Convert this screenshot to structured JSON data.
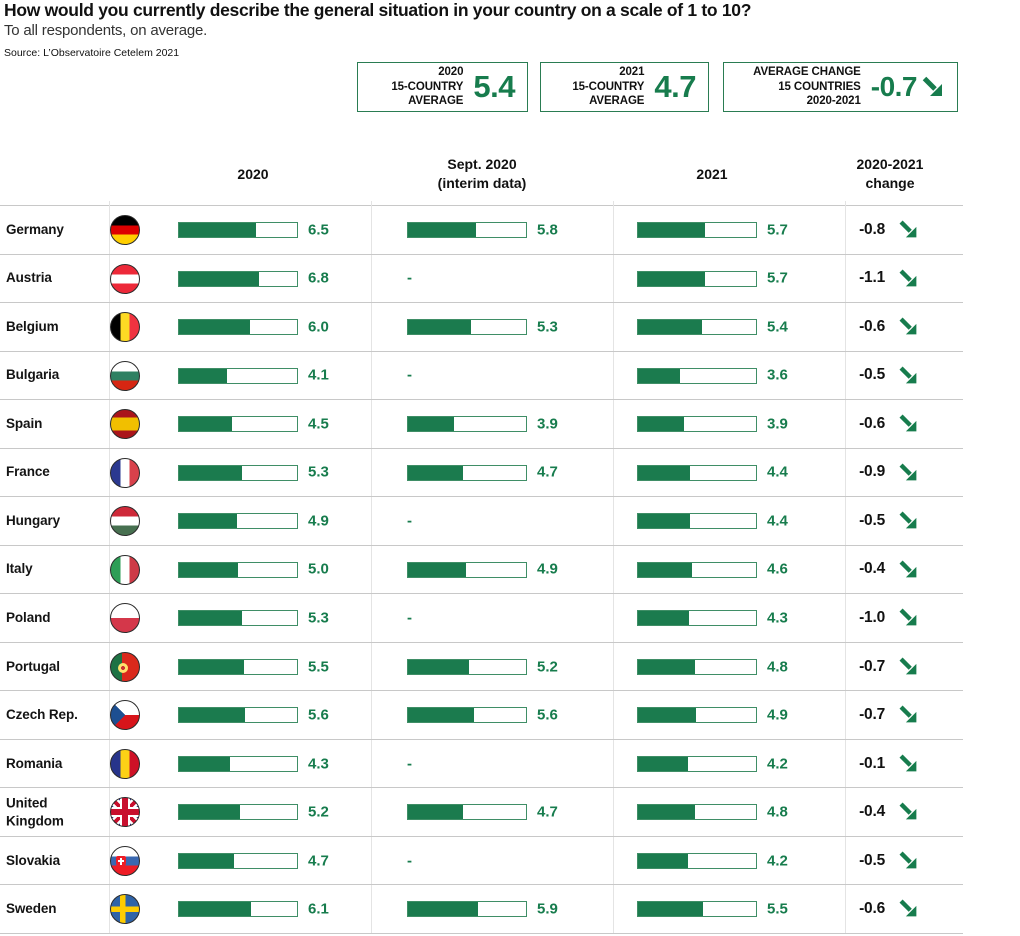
{
  "title": "How would you currently describe the general situation in your country on a scale of 1 to 10?",
  "subtitle": "To all respondents, on average.",
  "source": "Source: L’Observatoire Cetelem 2021",
  "colors": {
    "green": "#177c4d",
    "bar_fill": "#1b7b4e",
    "bar_border": "#3f8e66",
    "row_line": "#c8c8c8",
    "column_line": "#e4e4e4",
    "change_text": "#121212"
  },
  "summary_boxes": [
    {
      "label_lines": [
        "2020",
        "15-COUNTRY",
        "AVERAGE"
      ],
      "value": "5.4",
      "arrow": false
    },
    {
      "label_lines": [
        "2021",
        "15-COUNTRY",
        "AVERAGE"
      ],
      "value": "4.7",
      "arrow": false
    },
    {
      "label_lines": [
        "AVERAGE CHANGE",
        "15 COUNTRIES",
        "2020-2021"
      ],
      "value": "-0.7",
      "arrow": true
    }
  ],
  "columns": [
    {
      "lines": [
        "2020"
      ]
    },
    {
      "lines": [
        "Sept. 2020",
        "(interim data)"
      ]
    },
    {
      "lines": [
        "2021"
      ]
    },
    {
      "lines": [
        "2020-2021",
        "change"
      ]
    }
  ],
  "rows": [
    {
      "country": "Germany",
      "flag": "germany",
      "v2020": "6.5",
      "sept2020": "5.8",
      "v2021": "5.7",
      "change": "-0.8"
    },
    {
      "country": "Austria",
      "flag": "austria",
      "v2020": "6.8",
      "sept2020": "-",
      "v2021": "5.7",
      "change": "-1.1"
    },
    {
      "country": "Belgium",
      "flag": "belgium",
      "v2020": "6.0",
      "sept2020": "5.3",
      "v2021": "5.4",
      "change": "-0.6"
    },
    {
      "country": "Bulgaria",
      "flag": "bulgaria",
      "v2020": "4.1",
      "sept2020": "-",
      "v2021": "3.6",
      "change": "-0.5"
    },
    {
      "country": "Spain",
      "flag": "spain",
      "v2020": "4.5",
      "sept2020": "3.9",
      "v2021": "3.9",
      "change": "-0.6"
    },
    {
      "country": "France",
      "flag": "france",
      "v2020": "5.3",
      "sept2020": "4.7",
      "v2021": "4.4",
      "change": "-0.9"
    },
    {
      "country": "Hungary",
      "flag": "hungary",
      "v2020": "4.9",
      "sept2020": "-",
      "v2021": "4.4",
      "change": "-0.5"
    },
    {
      "country": "Italy",
      "flag": "italy",
      "v2020": "5.0",
      "sept2020": "4.9",
      "v2021": "4.6",
      "change": "-0.4"
    },
    {
      "country": "Poland",
      "flag": "poland",
      "v2020": "5.3",
      "sept2020": "-",
      "v2021": "4.3",
      "change": "-1.0"
    },
    {
      "country": "Portugal",
      "flag": "portugal",
      "v2020": "5.5",
      "sept2020": "5.2",
      "v2021": "4.8",
      "change": "-0.7"
    },
    {
      "country": "Czech Rep.",
      "flag": "czech",
      "v2020": "5.6",
      "sept2020": "5.6",
      "v2021": "4.9",
      "change": "-0.7"
    },
    {
      "country": "Romania",
      "flag": "romania",
      "v2020": "4.3",
      "sept2020": "-",
      "v2021": "4.2",
      "change": "-0.1"
    },
    {
      "country": "United Kingdom",
      "flag": "uk",
      "v2020": "5.2",
      "sept2020": "4.7",
      "v2021": "4.8",
      "change": "-0.4"
    },
    {
      "country": "Slovakia",
      "flag": "slovakia",
      "v2020": "4.7",
      "sept2020": "-",
      "v2021": "4.2",
      "change": "-0.5"
    },
    {
      "country": "Sweden",
      "flag": "sweden",
      "v2020": "6.1",
      "sept2020": "5.9",
      "v2021": "5.5",
      "change": "-0.6"
    }
  ],
  "chart_data": {
    "type": "bar",
    "title": "How would you currently describe the general situation in your country on a scale of 1 to 10?",
    "subtitle": "To all respondents, on average.",
    "source": "Source: L’Observatoire Cetelem 2021",
    "scale": [
      0,
      10
    ],
    "legend_position": "column-headers",
    "grid": false,
    "categories": [
      "Germany",
      "Austria",
      "Belgium",
      "Bulgaria",
      "Spain",
      "France",
      "Hungary",
      "Italy",
      "Poland",
      "Portugal",
      "Czech Rep.",
      "Romania",
      "United Kingdom",
      "Slovakia",
      "Sweden"
    ],
    "series": [
      {
        "name": "2020",
        "values": [
          6.5,
          6.8,
          6.0,
          4.1,
          4.5,
          5.3,
          4.9,
          5.0,
          5.3,
          5.5,
          5.6,
          4.3,
          5.2,
          4.7,
          6.1
        ]
      },
      {
        "name": "Sept. 2020 (interim data)",
        "values": [
          5.8,
          null,
          5.3,
          null,
          3.9,
          4.7,
          null,
          4.9,
          null,
          5.2,
          5.6,
          null,
          4.7,
          null,
          5.9
        ]
      },
      {
        "name": "2021",
        "values": [
          5.7,
          5.7,
          5.4,
          3.6,
          3.9,
          4.4,
          4.4,
          4.6,
          4.3,
          4.8,
          4.9,
          4.2,
          4.8,
          4.2,
          5.5
        ]
      },
      {
        "name": "2020-2021 change",
        "values": [
          -0.8,
          -1.1,
          -0.6,
          -0.5,
          -0.6,
          -0.9,
          -0.5,
          -0.4,
          -1.0,
          -0.7,
          -0.7,
          -0.1,
          -0.4,
          -0.5,
          -0.6
        ]
      }
    ],
    "averages": {
      "avg_2020": 5.4,
      "avg_2021": 4.7,
      "avg_change": -0.7
    }
  }
}
